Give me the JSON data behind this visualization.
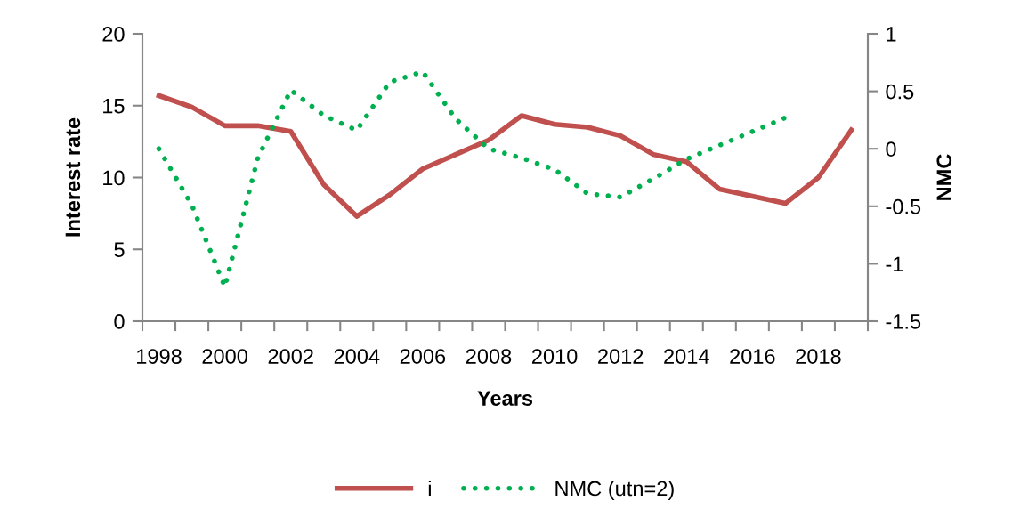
{
  "chart_data": {
    "type": "line",
    "xlabel": "Years",
    "ylabel": "Interest rate",
    "y2label": "NMC",
    "categories": [
      "1998",
      null,
      "2000",
      null,
      "2002",
      null,
      "2004",
      null,
      "2006",
      null,
      "2008",
      null,
      "2010",
      null,
      "2012",
      null,
      "2014",
      null,
      "2016",
      null,
      "2018",
      null
    ],
    "series": [
      {
        "name": "i",
        "color": "#c0504d",
        "line_style": "solid",
        "values": [
          15.7,
          14.9,
          13.6,
          13.6,
          13.2,
          9.5,
          7.3,
          8.8,
          10.6,
          11.6,
          12.6,
          14.3,
          13.7,
          13.5,
          12.9,
          11.6,
          11.1,
          9.2,
          8.7,
          8.2,
          10.0,
          13.3
        ]
      },
      {
        "name": "NMC (utn=2)",
        "color": "#00b050",
        "line_style": "dotted",
        "axis": "y2",
        "values": [
          0,
          -0.49,
          -1.2,
          -0.08,
          0.51,
          0.29,
          0.16,
          0.58,
          0.67,
          0.26,
          0,
          -0.08,
          -0.18,
          -0.39,
          -0.42,
          -0.26,
          -0.09,
          0.03,
          0.15,
          0.27,
          null,
          null
        ]
      }
    ],
    "ylim": [
      0,
      20
    ],
    "yticks": [
      0,
      5,
      10,
      15,
      20
    ],
    "y2lim": [
      -1.5,
      1
    ],
    "y2ticks": [
      {
        "value": -1.5,
        "label": "-1.5"
      },
      {
        "value": -1,
        "label": "-1"
      },
      {
        "value": -0.5,
        "label": "-0.5"
      },
      0,
      0.5,
      1
    ],
    "grid": false,
    "legend": "bottom"
  }
}
